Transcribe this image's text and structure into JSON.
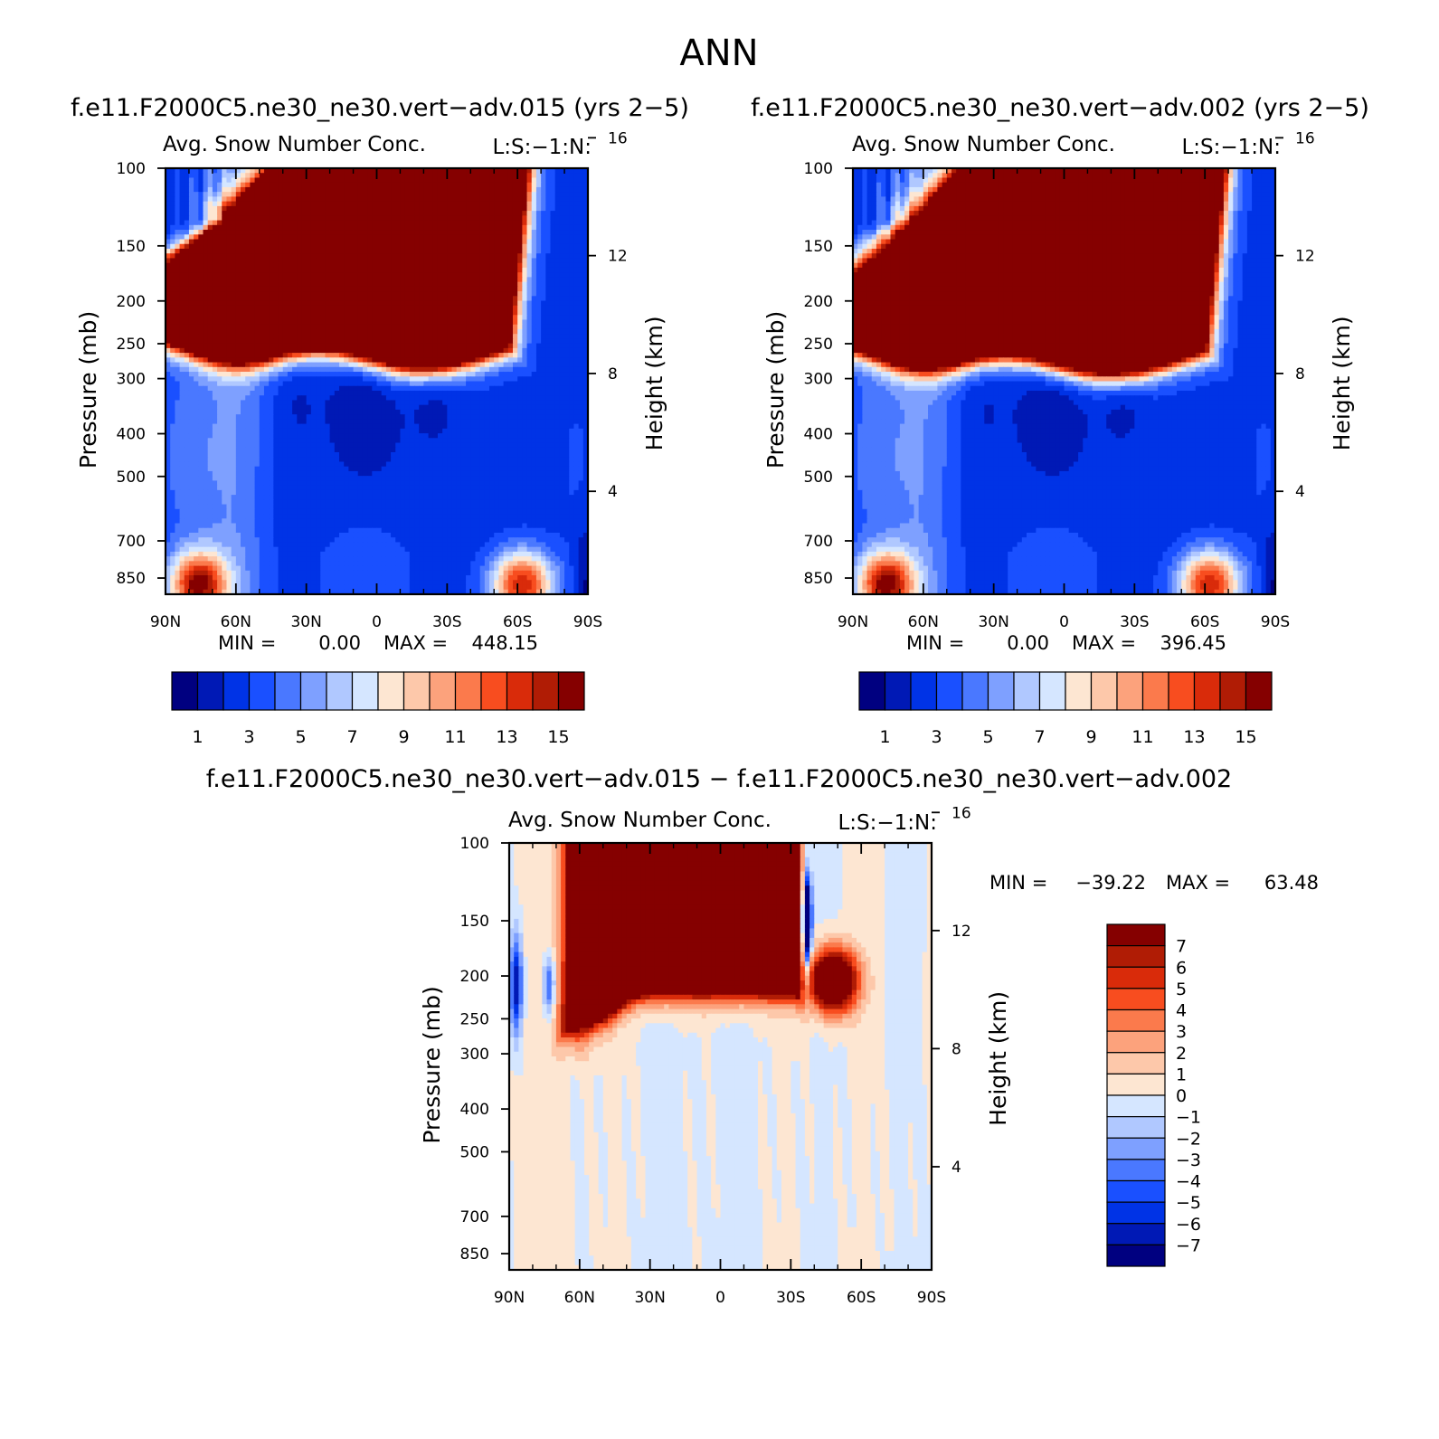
{
  "figure": {
    "main_title": "ANN"
  },
  "colors": {
    "fill_colors": [
      "#000080",
      "#0019b5",
      "#0033e6",
      "#1a50ff",
      "#4a78ff",
      "#7ea0ff",
      "#b0c8ff",
      "#d5e6ff",
      "#fde6d2",
      "#fdc8aa",
      "#fca27c",
      "#fb7a4c",
      "#f84d1f",
      "#d92b0a",
      "#b01c05",
      "#850000"
    ],
    "diff_colors": [
      "#000080",
      "#0019b5",
      "#0033e6",
      "#1a50ff",
      "#4a78ff",
      "#7ea0ff",
      "#b0c8ff",
      "#d5e6ff",
      "#fde6d2",
      "#fdc8aa",
      "#fca27c",
      "#fb7a4c",
      "#f84d1f",
      "#d92b0a",
      "#b01c05",
      "#850000"
    ]
  },
  "chart_data": [
    {
      "id": "left",
      "type": "heatmap",
      "case_title": "f.e11.F2000C5.ne30_ne30.vert-adv.015 (yrs 2-5)",
      "subtitle": "Avg. Snow Number Conc.",
      "units": "L:S:-1:N:",
      "x_ticks": [
        "90N",
        "60N",
        "30N",
        "0",
        "30S",
        "60S",
        "90S"
      ],
      "x_range": [
        90,
        -90
      ],
      "y_label": "Pressure (mb)",
      "y_ticks": [
        "100",
        "150",
        "200",
        "250",
        "300",
        "400",
        "500",
        "700",
        "850"
      ],
      "y_range": [
        100,
        925
      ],
      "y_scale": "log",
      "y2_label": "Height (km)",
      "y2_ticks": [
        "16",
        "12",
        "8",
        "4"
      ],
      "min_label": "MIN =",
      "min_value": "0.00",
      "max_label": "MAX =",
      "max_value": "448.15",
      "colorbar_orientation": "horizontal",
      "colorbar_labels": [
        "1",
        "3",
        "5",
        "7",
        "9",
        "11",
        "13",
        "15"
      ],
      "level_range": [
        0,
        16
      ]
    },
    {
      "id": "right",
      "type": "heatmap",
      "case_title": "f.e11.F2000C5.ne30_ne30.vert-adv.002 (yrs 2-5)",
      "subtitle": "Avg. Snow Number Conc.",
      "units": "L:S:-1:N:",
      "x_ticks": [
        "90N",
        "60N",
        "30N",
        "0",
        "30S",
        "60S",
        "90S"
      ],
      "x_range": [
        90,
        -90
      ],
      "y_label": "Pressure (mb)",
      "y_ticks": [
        "100",
        "150",
        "200",
        "250",
        "300",
        "400",
        "500",
        "700",
        "850"
      ],
      "y_range": [
        100,
        925
      ],
      "y_scale": "log",
      "y2_label": "Height (km)",
      "y2_ticks": [
        "16",
        "12",
        "8",
        "4"
      ],
      "min_label": "MIN =",
      "min_value": "0.00",
      "max_label": "MAX =",
      "max_value": "396.45",
      "colorbar_orientation": "horizontal",
      "colorbar_labels": [
        "1",
        "3",
        "5",
        "7",
        "9",
        "11",
        "13",
        "15"
      ],
      "level_range": [
        0,
        16
      ]
    },
    {
      "id": "diff",
      "type": "heatmap",
      "case_title": "f.e11.F2000C5.ne30_ne30.vert-adv.015 - f.e11.F2000C5.ne30_ne30.vert-adv.002",
      "subtitle": "Avg. Snow Number Conc.",
      "units": "L:S:-1:N:",
      "x_ticks": [
        "90N",
        "60N",
        "30N",
        "0",
        "30S",
        "60S",
        "90S"
      ],
      "x_range": [
        90,
        -90
      ],
      "y_label": "Pressure (mb)",
      "y_ticks": [
        "100",
        "150",
        "200",
        "250",
        "300",
        "400",
        "500",
        "700",
        "850"
      ],
      "y_range": [
        100,
        925
      ],
      "y_scale": "log",
      "y2_label": "Height (km)",
      "y2_ticks": [
        "16",
        "12",
        "8",
        "4"
      ],
      "min_label": "MIN =",
      "min_value": "-39.22",
      "max_label": "MAX =",
      "max_value": "63.48",
      "colorbar_orientation": "vertical",
      "colorbar_labels": [
        "7",
        "6",
        "5",
        "4",
        "3",
        "2",
        "1",
        "0",
        "-1",
        "-2",
        "-3",
        "-4",
        "-5",
        "-6",
        "-7"
      ],
      "level_range": [
        -8,
        8
      ]
    }
  ]
}
